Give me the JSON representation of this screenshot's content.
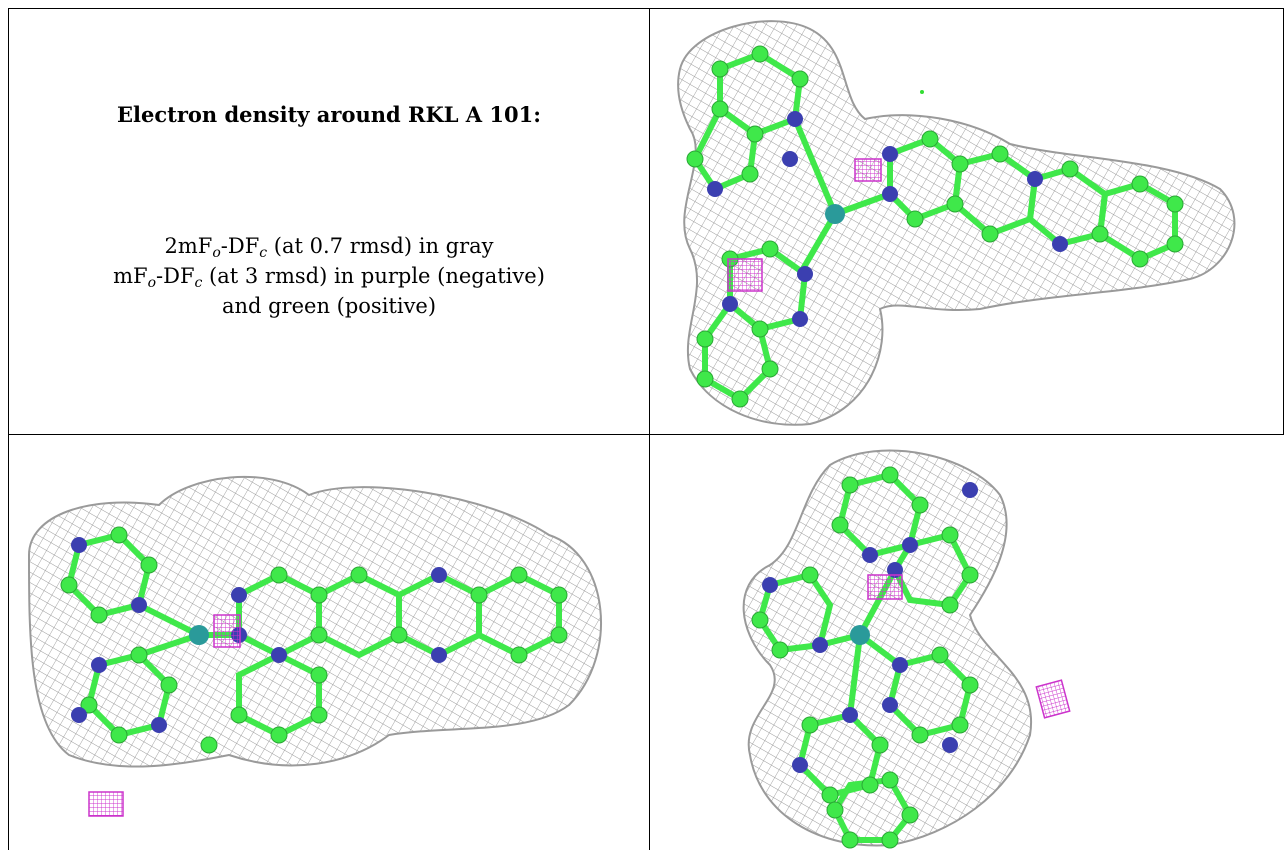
{
  "caption": {
    "title": "Electron density around RKL A 101:",
    "line1": {
      "prefix": "2mF",
      "sub1": "o",
      "mid": "-DF",
      "sub2": "c",
      "suffix": " (at 0.7 rmsd) in gray"
    },
    "line2": {
      "prefix": "mF",
      "sub1": "o",
      "mid": "-DF",
      "sub2": "c",
      "suffix": " (at 3 rmsd) in purple (negative)"
    },
    "line3": "and green (positive)"
  },
  "colors": {
    "mesh_gray": "#9a9a9a",
    "carbon_green": "#3fe84a",
    "nitrogen_blue": "#3b3fb0",
    "metal_teal": "#2a9a9a",
    "negative_purple": "#cc33cc",
    "positive_green": "#33dd33"
  },
  "panels": [
    {
      "name": "view-top-right",
      "icon": "molecule-density-view"
    },
    {
      "name": "view-bottom-left",
      "icon": "molecule-density-view"
    },
    {
      "name": "view-bottom-right",
      "icon": "molecule-density-view"
    }
  ]
}
